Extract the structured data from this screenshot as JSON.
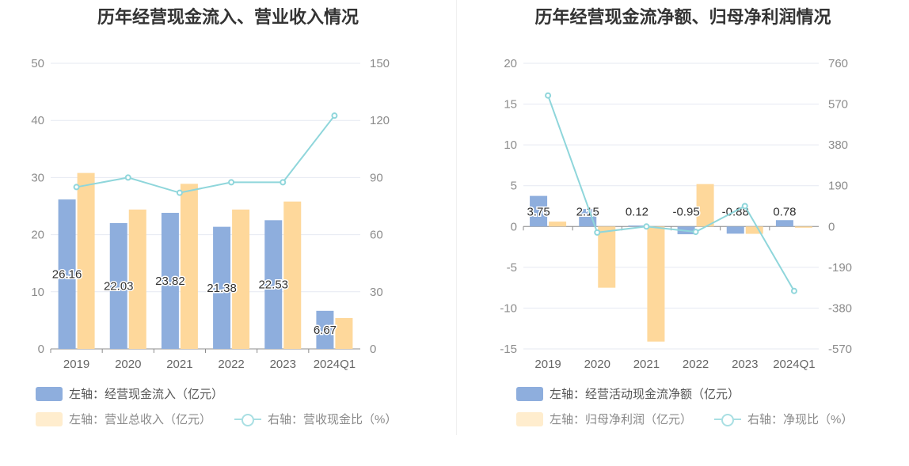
{
  "chart_data": [
    {
      "type": "bar",
      "title": "历年经营现金流入、营业收入情况",
      "categories": [
        "2019",
        "2020",
        "2021",
        "2022",
        "2023",
        "2024Q1"
      ],
      "y_left": {
        "ticks": [
          "0",
          "10",
          "20",
          "30",
          "40",
          "50"
        ],
        "ylim": [
          0,
          50
        ]
      },
      "y_right": {
        "ticks": [
          "0",
          "30",
          "60",
          "90",
          "120",
          "150"
        ],
        "ylim": [
          0,
          150
        ]
      },
      "series": [
        {
          "name": "左轴：经营现金流入（亿元）",
          "kind": "bar",
          "axis": "left",
          "color": "#8eaedd",
          "values": [
            26.16,
            22.03,
            23.82,
            21.38,
            22.53,
            6.67
          ],
          "labels": [
            "26.16",
            "22.03",
            "23.82",
            "21.38",
            "22.53",
            "6.67"
          ]
        },
        {
          "name": "左轴：营业总收入（亿元）",
          "kind": "bar",
          "axis": "left",
          "color": "#fed89b",
          "values": [
            30.8,
            24.4,
            28.9,
            24.4,
            25.8,
            5.4
          ]
        },
        {
          "name": "右轴：营收现金比（%）",
          "kind": "line",
          "axis": "right",
          "color": "#8fd6db",
          "values": [
            85,
            90,
            82,
            87.5,
            87.5,
            122.5
          ]
        }
      ]
    },
    {
      "type": "bar",
      "title": "历年经营现金流净额、归母净利润情况",
      "categories": [
        "2019",
        "2020",
        "2021",
        "2022",
        "2023",
        "2024Q1"
      ],
      "y_left": {
        "ticks": [
          "-15",
          "-10",
          "-5",
          "0",
          "5",
          "10",
          "15",
          "20"
        ],
        "ylim": [
          -15,
          20
        ]
      },
      "y_right": {
        "ticks": [
          "-570",
          "-380",
          "-190",
          "0",
          "190",
          "380",
          "570",
          "760"
        ],
        "ylim": [
          -570,
          760
        ]
      },
      "series": [
        {
          "name": "左轴：经营活动现金流净额（亿元）",
          "kind": "bar",
          "axis": "left",
          "color": "#8eaedd",
          "values": [
            3.75,
            2.15,
            0.12,
            -0.95,
            -0.88,
            0.78
          ],
          "labels": [
            "3.75",
            "2.15",
            "0.12",
            "-0.95",
            "-0.88",
            "0.78"
          ]
        },
        {
          "name": "左轴：归母净利润（亿元）",
          "kind": "bar",
          "axis": "left",
          "color": "#fed89b",
          "values": [
            0.6,
            -7.5,
            -14.1,
            5.2,
            -0.9,
            -0.15
          ]
        },
        {
          "name": "右轴：净现比（%）",
          "kind": "line",
          "axis": "right",
          "color": "#8fd6db",
          "values": [
            610,
            -28,
            0,
            -25,
            95,
            -300
          ]
        }
      ]
    }
  ]
}
